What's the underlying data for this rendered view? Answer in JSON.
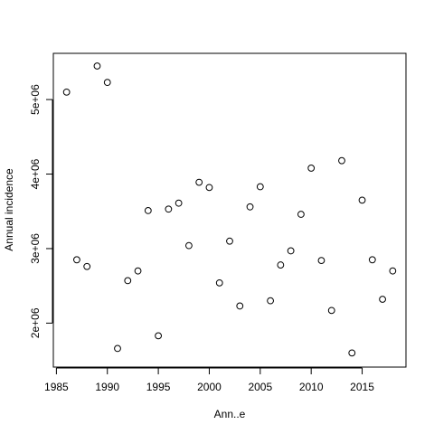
{
  "chart_data": {
    "type": "scatter",
    "title": "",
    "xlabel": "Ann..e",
    "ylabel": "Annual incidence",
    "xlim": [
      1984.7,
      2019.3
    ],
    "ylim": [
      1410000,
      5620000
    ],
    "x_ticks": [
      1985,
      1990,
      1995,
      2000,
      2005,
      2010,
      2015
    ],
    "x_tick_labels": [
      "1985",
      "1990",
      "1995",
      "2000",
      "2005",
      "2010",
      "2015"
    ],
    "y_ticks": [
      2000000,
      3000000,
      4000000,
      5000000
    ],
    "y_tick_labels": [
      "2e+06",
      "3e+06",
      "4e+06",
      "5e+06"
    ],
    "grid": false,
    "legend": "none",
    "marker": "open-circle",
    "point_color": "#000000",
    "x": [
      1986,
      1987,
      1988,
      1989,
      1990,
      1991,
      1992,
      1993,
      1994,
      1995,
      1996,
      1997,
      1998,
      1999,
      2000,
      2001,
      2002,
      2003,
      2004,
      2005,
      2006,
      2007,
      2008,
      2009,
      2010,
      2011,
      2012,
      2013,
      2014,
      2015,
      2016,
      2017,
      2018
    ],
    "y": [
      5100000,
      2850000,
      2760000,
      5450000,
      5230000,
      1660000,
      2570000,
      2700000,
      3510000,
      1830000,
      3530000,
      3610000,
      3040000,
      3890000,
      3820000,
      2540000,
      3100000,
      2230000,
      3560000,
      3830000,
      2300000,
      2780000,
      2970000,
      3460000,
      4080000,
      2840000,
      2170000,
      4180000,
      1600000,
      3650000,
      2850000,
      2320000,
      2700000
    ]
  }
}
